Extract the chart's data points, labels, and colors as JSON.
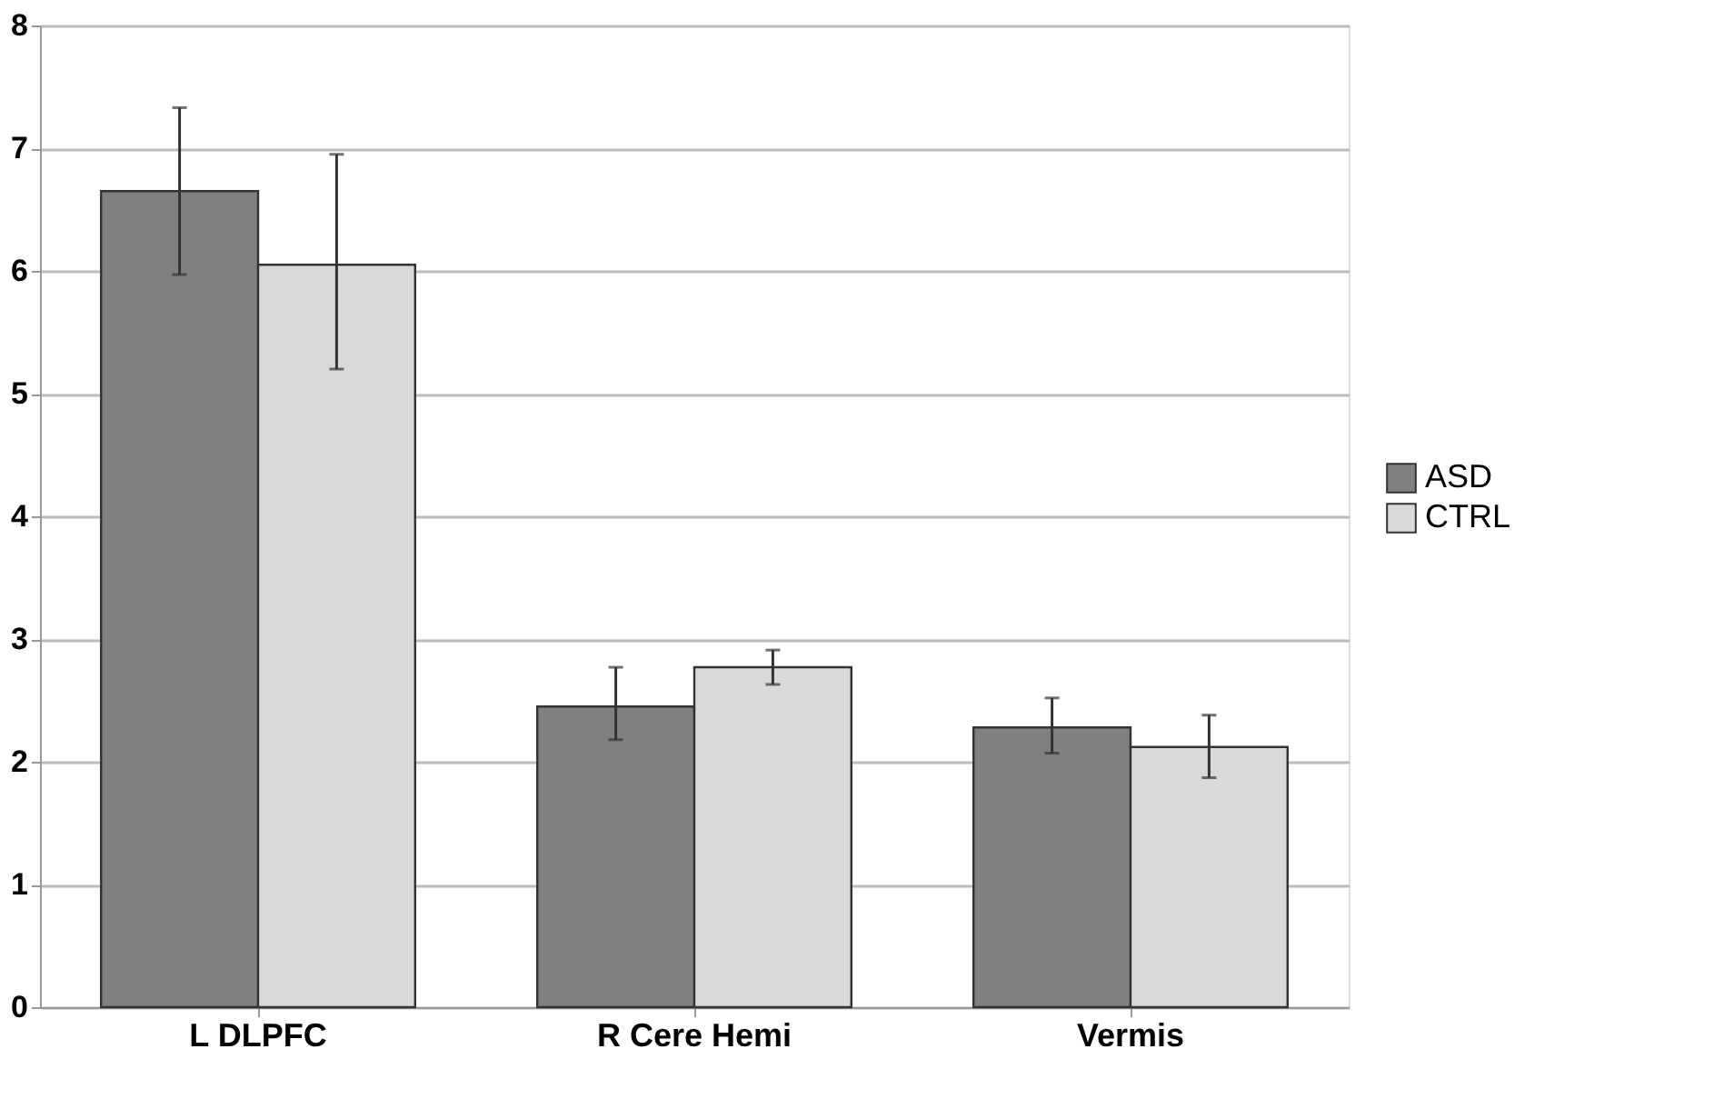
{
  "chart_data": {
    "type": "bar",
    "categories": [
      "L DLPFC",
      "R Cere Hemi",
      "Vermis"
    ],
    "series": [
      {
        "name": "ASD",
        "color": "#808080",
        "values": [
          6.65,
          2.45,
          2.28
        ],
        "errors": [
          [
            5.97,
            7.33
          ],
          [
            2.18,
            2.77
          ],
          [
            2.07,
            2.52
          ]
        ]
      },
      {
        "name": "CTRL",
        "color": "#d9d9d9",
        "values": [
          6.05,
          2.77,
          2.12
        ],
        "errors": [
          [
            5.2,
            6.95
          ],
          [
            2.63,
            2.91
          ],
          [
            1.87,
            2.38
          ]
        ]
      }
    ],
    "ylim": [
      0,
      8
    ],
    "yticks": [
      0,
      1,
      2,
      3,
      4,
      5,
      6,
      7,
      8
    ],
    "grid": "y",
    "legend": "right"
  }
}
